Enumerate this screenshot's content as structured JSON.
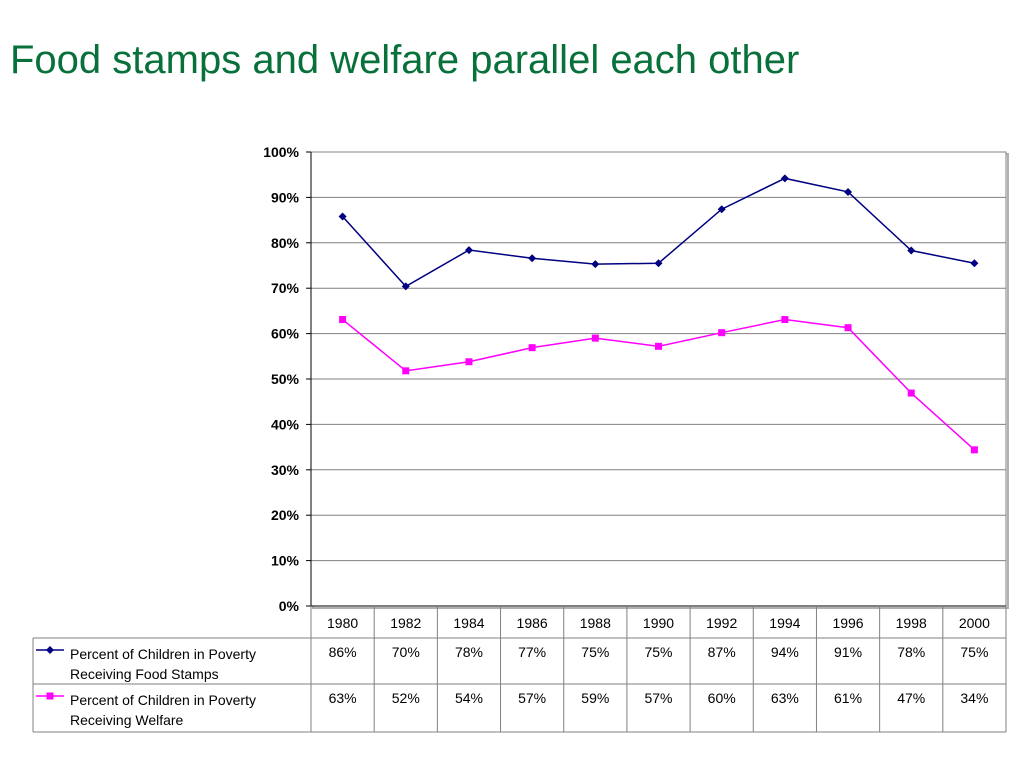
{
  "slide": {
    "title": "Food stamps and welfare parallel each other"
  },
  "chart_data": {
    "type": "line",
    "title": "",
    "xlabel": "",
    "ylabel": "",
    "ylim": [
      0,
      100
    ],
    "y_ticks": [
      "0%",
      "10%",
      "20%",
      "30%",
      "40%",
      "50%",
      "60%",
      "70%",
      "80%",
      "90%",
      "100%"
    ],
    "grid": true,
    "legend": "data-table",
    "x": [
      "1980",
      "1982",
      "1984",
      "1986",
      "1988",
      "1990",
      "1992",
      "1994",
      "1996",
      "1998",
      "2000"
    ],
    "series": [
      {
        "name": "Percent of Children in Poverty Receiving Food Stamps",
        "legend_lines": [
          "Percent of Children in Poverty",
          "Receiving Food Stamps"
        ],
        "values": [
          85.8,
          70.4,
          78.4,
          76.6,
          75.3,
          75.5,
          87.4,
          94.2,
          91.2,
          78.3,
          75.5
        ],
        "labels": [
          "86%",
          "70%",
          "78%",
          "77%",
          "75%",
          "75%",
          "87%",
          "94%",
          "91%",
          "78%",
          "75%"
        ],
        "color": "#000080",
        "marker": "diamond"
      },
      {
        "name": "Percent of Children in Poverty Receiving Welfare",
        "legend_lines": [
          "Percent of Children in Poverty",
          "Receiving Welfare"
        ],
        "values": [
          63.1,
          51.8,
          53.8,
          56.9,
          59.0,
          57.2,
          60.2,
          63.1,
          61.3,
          46.9,
          34.4
        ],
        "labels": [
          "63%",
          "52%",
          "54%",
          "57%",
          "59%",
          "57%",
          "60%",
          "63%",
          "61%",
          "47%",
          "34%"
        ],
        "color": "#ff00ff",
        "marker": "square"
      }
    ]
  }
}
